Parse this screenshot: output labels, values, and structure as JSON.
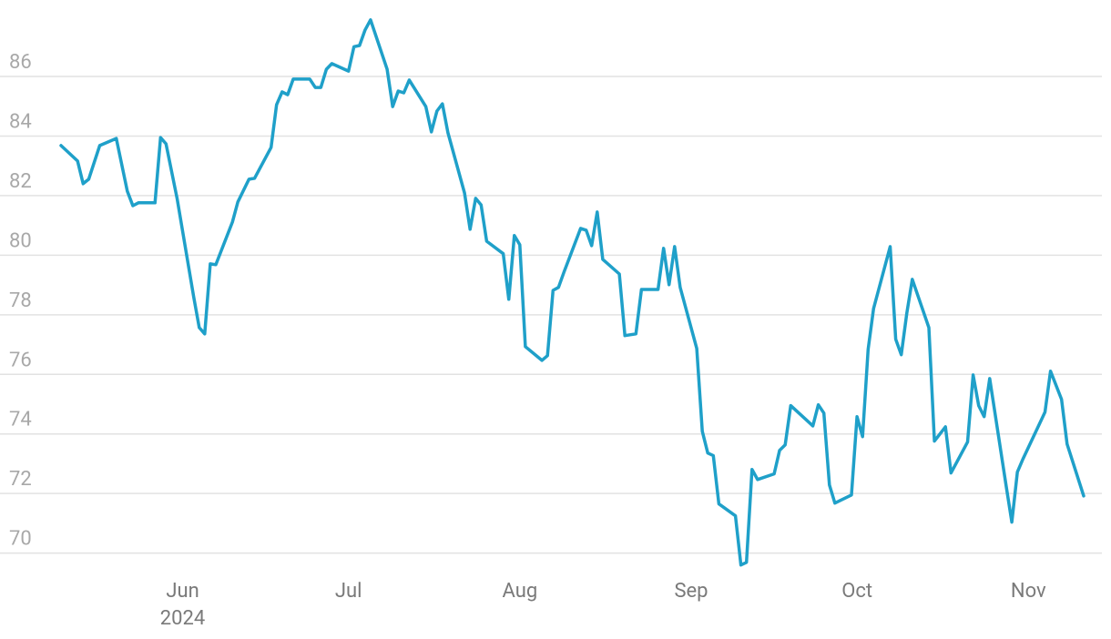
{
  "chart_data": {
    "type": "line",
    "color": "#1fa0c9",
    "grid": true,
    "x": [
      131,
      134,
      135,
      136,
      138,
      141,
      143,
      144,
      145,
      148,
      149,
      150,
      152,
      155,
      156,
      157,
      158,
      159,
      162,
      163,
      165,
      166,
      169,
      170,
      171,
      172,
      173,
      176,
      177,
      178,
      179,
      180,
      183,
      184,
      185,
      186,
      187,
      190,
      191,
      192,
      193,
      194,
      197,
      198,
      199,
      200,
      201,
      204,
      205,
      206,
      207,
      208,
      211,
      212,
      213,
      214,
      215,
      218,
      219,
      220,
      221,
      222,
      225,
      226,
      227,
      228,
      229,
      232,
      233,
      235,
      236,
      239,
      240,
      241,
      242,
      243,
      246,
      247,
      248,
      249,
      250,
      253,
      254,
      255,
      256,
      257,
      260,
      261,
      262,
      263,
      267,
      268,
      269,
      270,
      271,
      274,
      275,
      276,
      277,
      278,
      281,
      282,
      283,
      284,
      285,
      288,
      289,
      290,
      291,
      292,
      295,
      296,
      297,
      298,
      299,
      302,
      303,
      304,
      305,
      309,
      310,
      312,
      313,
      316
    ],
    "values": [
      83.68,
      83.16,
      82.4,
      82.55,
      83.68,
      83.92,
      82.15,
      81.66,
      81.76,
      81.76,
      83.95,
      83.74,
      81.9,
      78.6,
      77.57,
      77.36,
      79.71,
      79.68,
      81.11,
      81.79,
      82.55,
      82.58,
      83.62,
      85.05,
      85.48,
      85.39,
      85.91,
      85.91,
      85.63,
      85.63,
      86.24,
      86.43,
      86.18,
      87.0,
      87.04,
      87.56,
      87.9,
      86.24,
      84.99,
      85.51,
      85.45,
      85.88,
      84.99,
      84.14,
      84.84,
      85.08,
      84.11,
      82.09,
      80.87,
      81.91,
      81.69,
      80.47,
      80.05,
      78.52,
      80.66,
      80.35,
      76.93,
      76.47,
      76.63,
      78.82,
      78.92,
      79.44,
      80.9,
      80.84,
      80.32,
      81.45,
      79.86,
      79.37,
      77.3,
      77.36,
      78.85,
      78.85,
      80.23,
      79.01,
      80.29,
      78.92,
      76.87,
      74.09,
      73.36,
      73.27,
      71.65,
      71.25,
      69.6,
      69.69,
      72.81,
      72.47,
      72.66,
      73.45,
      73.63,
      74.95,
      74.27,
      74.98,
      74.7,
      72.29,
      71.68,
      71.95,
      74.58,
      73.91,
      76.84,
      78.21,
      80.29,
      77.18,
      76.66,
      78.06,
      79.19,
      77.57,
      73.76,
      74.0,
      74.24,
      72.69,
      73.73,
      75.98,
      74.95,
      74.58,
      75.86,
      72.23,
      71.04,
      72.72,
      73.15,
      74.73,
      76.11,
      75.16,
      73.66,
      71.92
    ],
    "xlim": [
      131,
      316
    ],
    "ylim": [
      69.5,
      88.2
    ],
    "xticks": [
      {
        "value": 153,
        "label": "Jun"
      },
      {
        "value": 183,
        "label": "Jul"
      },
      {
        "value": 214,
        "label": "Aug"
      },
      {
        "value": 245,
        "label": "Sep"
      },
      {
        "value": 275,
        "label": "Oct"
      },
      {
        "value": 306,
        "label": "Nov"
      }
    ],
    "x_year_label": "2024",
    "yticks": [
      70,
      72,
      74,
      76,
      78,
      80,
      82,
      84,
      86
    ]
  }
}
